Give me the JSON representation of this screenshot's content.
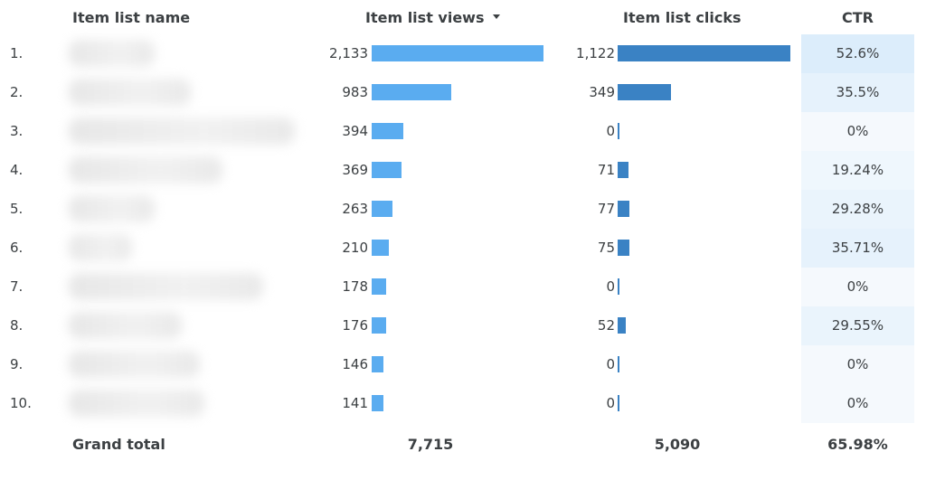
{
  "headers": {
    "name": "Item list name",
    "views": "Item list views",
    "clicks": "Item list clicks",
    "ctr": "CTR"
  },
  "sort": {
    "column": "Item list views",
    "direction": "descending",
    "icon": "sort-down-icon"
  },
  "colors": {
    "views_bar": "#5aacf0",
    "clicks_bar": "#3a82c4",
    "ctr_heat": "#e3f0fb"
  },
  "rows": [
    {
      "index": "1.",
      "views": "2,133",
      "clicks": "1,122",
      "ctr": "52.6%"
    },
    {
      "index": "2.",
      "views": "983",
      "clicks": "349",
      "ctr": "35.5%"
    },
    {
      "index": "3.",
      "views": "394",
      "clicks": "0",
      "ctr": "0%"
    },
    {
      "index": "4.",
      "views": "369",
      "clicks": "71",
      "ctr": "19.24%"
    },
    {
      "index": "5.",
      "views": "263",
      "clicks": "77",
      "ctr": "29.28%"
    },
    {
      "index": "6.",
      "views": "210",
      "clicks": "75",
      "ctr": "35.71%"
    },
    {
      "index": "7.",
      "views": "178",
      "clicks": "0",
      "ctr": "0%"
    },
    {
      "index": "8.",
      "views": "176",
      "clicks": "52",
      "ctr": "29.55%"
    },
    {
      "index": "9.",
      "views": "146",
      "clicks": "0",
      "ctr": "0%"
    },
    {
      "index": "10.",
      "views": "141",
      "clicks": "0",
      "ctr": "0%"
    }
  ],
  "grand_total": {
    "label": "Grand total",
    "views": "7,715",
    "clicks": "5,090",
    "ctr": "65.98%"
  }
}
